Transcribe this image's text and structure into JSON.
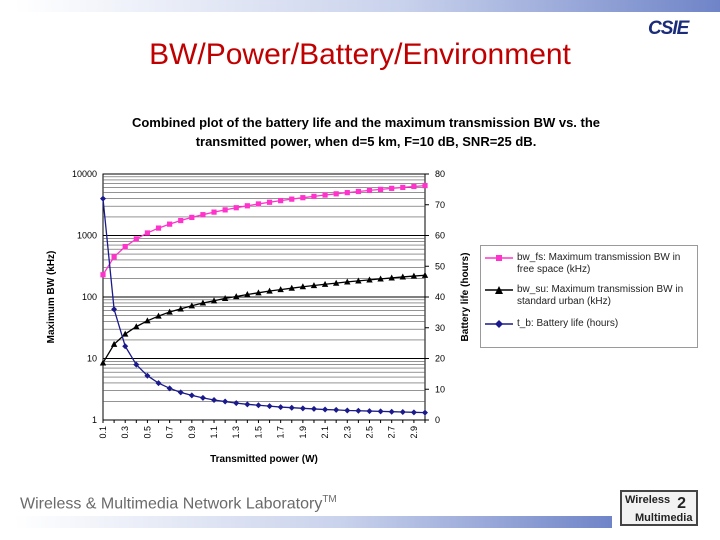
{
  "slide": {
    "title": "BW/Power/Battery/Environment",
    "logo_text": "CSIE",
    "footer": "Wireless & Multimedia Network Laboratory",
    "footer_tm": "TM",
    "footer_logo_line1": "Wireless",
    "footer_logo_line2": "Multimedia",
    "footer_logo_num": "2"
  },
  "colors": {
    "title": "#c00000",
    "bw_fs": "#ff33cc",
    "bw_su": "#000000",
    "t_b": "#1a1a8c"
  },
  "chart_data": {
    "type": "line",
    "title_line1": "Combined plot of the battery life and the maximum transmission BW vs. the",
    "title_line2": "transmitted power, when d=5 km, F=10 dB, SNR=25 dB.",
    "xlabel": "Transmitted power (W)",
    "ylabel_left": "Maximum BW (kHz)",
    "ylabel_right": "Battery life (hours)",
    "x": [
      0.1,
      0.2,
      0.3,
      0.4,
      0.5,
      0.6,
      0.7,
      0.8,
      0.9,
      1.0,
      1.1,
      1.2,
      1.3,
      1.4,
      1.5,
      1.6,
      1.7,
      1.8,
      1.9,
      2.0,
      2.1,
      2.2,
      2.3,
      2.4,
      2.5,
      2.6,
      2.7,
      2.8,
      2.9,
      3.0
    ],
    "x_tick_labels": [
      "0.1",
      "0.3",
      "0.5",
      "0.7",
      "0.9",
      "1.1",
      "1.3",
      "1.5",
      "1.7",
      "1.9",
      "2.1",
      "2.3",
      "2.5",
      "2.7",
      "2.9"
    ],
    "y_left_ticks": [
      "1",
      "10",
      "100",
      "1000",
      "10000"
    ],
    "y_left_scale": "log",
    "ylim_left": [
      1,
      10000
    ],
    "y_right_ticks": [
      "0",
      "10",
      "20",
      "30",
      "40",
      "50",
      "60",
      "70",
      "80"
    ],
    "ylim_right": [
      0,
      80
    ],
    "grid": true,
    "legend_position": "right",
    "series": [
      {
        "name": "bw_fs: Maximum transmission BW in free space (kHz)",
        "axis": "left",
        "marker": "square",
        "values": [
          230,
          450,
          660,
          880,
          1100,
          1320,
          1530,
          1750,
          1970,
          2180,
          2400,
          2610,
          2830,
          3040,
          3260,
          3470,
          3690,
          3900,
          4120,
          4330,
          4550,
          4760,
          4980,
          5190,
          5410,
          5620,
          5840,
          6050,
          6270,
          6480
        ]
      },
      {
        "name": "bw_su: Maximum transmission BW in standard urban (kHz)",
        "axis": "left",
        "marker": "triangle",
        "values": [
          8.5,
          17,
          25,
          33,
          41,
          49,
          57,
          64,
          72,
          80,
          87,
          95,
          102,
          110,
          117,
          125,
          132,
          139,
          147,
          154,
          161,
          168,
          176,
          183,
          190,
          197,
          204,
          212,
          219,
          226
        ]
      },
      {
        "name": "t_b: Battery life (hours)",
        "axis": "right",
        "marker": "diamond",
        "values": [
          72,
          36,
          24,
          18,
          14.4,
          12,
          10.3,
          9,
          8,
          7.2,
          6.5,
          6,
          5.5,
          5.1,
          4.8,
          4.5,
          4.2,
          4,
          3.8,
          3.6,
          3.4,
          3.3,
          3.1,
          3,
          2.9,
          2.8,
          2.7,
          2.6,
          2.5,
          2.4
        ]
      }
    ]
  }
}
